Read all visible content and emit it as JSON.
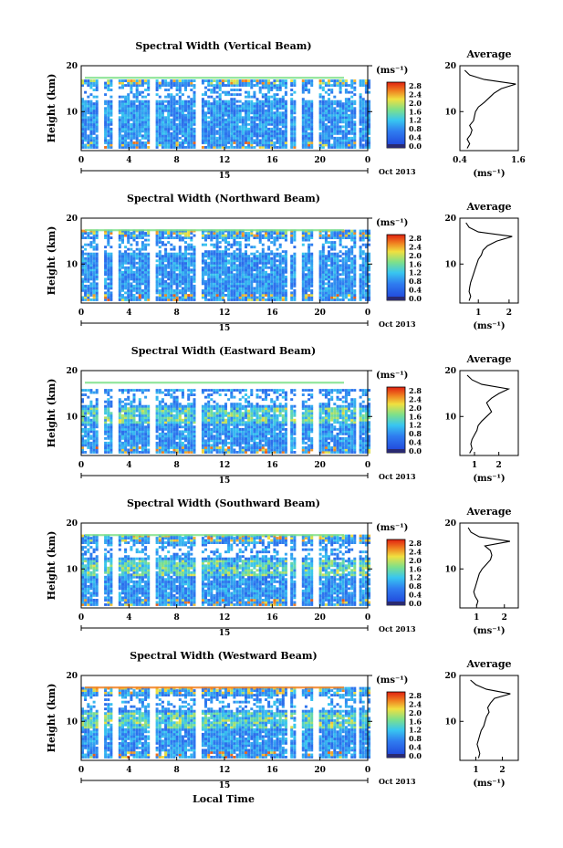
{
  "figure": {
    "xlabel": "Local Time",
    "date_label": "Oct 2013",
    "day_label": "15",
    "colorbar_unit": "(ms⁻¹)",
    "colorbar_ticks": [
      "2.8",
      "2.4",
      "2.0",
      "1.6",
      "1.2",
      "0.8",
      "0.4",
      "0.0"
    ],
    "colors": {
      "low": "#1f3fd8",
      "mid": "#38c6f0",
      "green": "#7ee08a",
      "yellow": "#f0e040",
      "high": "#e02010",
      "bottom": "#2a2a70"
    }
  },
  "chart_data": [
    {
      "type": "heatmap",
      "title": "Spectral Width (Vertical Beam)",
      "ylabel": "Height (km)",
      "x_ticks": [
        "0",
        "4",
        "8",
        "12",
        "16",
        "20",
        "0"
      ],
      "x_range": [
        0,
        24
      ],
      "y_ticks": [
        "20",
        "10"
      ],
      "y_range": [
        1.5,
        20
      ],
      "colorbar_range": [
        0.0,
        3.0
      ],
      "profile": {
        "title": "Average",
        "xlabel": "(ms⁻¹)",
        "x_ticks": [
          "0.4",
          "1.6"
        ],
        "x_range": [
          0.4,
          1.6
        ],
        "heights": [
          2,
          3,
          4,
          5,
          6,
          7,
          8,
          9,
          10,
          11,
          12,
          13,
          14,
          15,
          16,
          17,
          18,
          19
        ],
        "values": [
          0.55,
          0.6,
          0.55,
          0.62,
          0.65,
          0.6,
          0.68,
          0.7,
          0.72,
          0.78,
          0.9,
          1.0,
          1.1,
          1.25,
          1.55,
          0.9,
          0.6,
          0.5
        ]
      }
    },
    {
      "type": "heatmap",
      "title": "Spectral Width (Northward Beam)",
      "ylabel": "Height (km)",
      "x_ticks": [
        "0",
        "4",
        "8",
        "12",
        "16",
        "20",
        "0"
      ],
      "x_range": [
        0,
        24
      ],
      "y_ticks": [
        "20",
        "10"
      ],
      "y_range": [
        1.5,
        20
      ],
      "colorbar_range": [
        0.0,
        3.0
      ],
      "profile": {
        "title": "Average",
        "xlabel": "(ms⁻¹)",
        "x_ticks": [
          "1",
          "2"
        ],
        "x_range": [
          0.4,
          2.3
        ],
        "heights": [
          2,
          3,
          4,
          5,
          6,
          7,
          8,
          9,
          10,
          11,
          12,
          13,
          14,
          15,
          16,
          17,
          18,
          19
        ],
        "values": [
          0.7,
          0.75,
          0.7,
          0.72,
          0.75,
          0.8,
          0.85,
          0.9,
          0.95,
          1.0,
          1.1,
          1.15,
          1.3,
          1.6,
          2.1,
          1.0,
          0.7,
          0.6
        ]
      }
    },
    {
      "type": "heatmap",
      "title": "Spectral Width (Eastward Beam)",
      "ylabel": "Height (km)",
      "x_ticks": [
        "0",
        "4",
        "8",
        "12",
        "16",
        "20",
        "0"
      ],
      "x_range": [
        0,
        24
      ],
      "y_ticks": [
        "20",
        "10"
      ],
      "y_range": [
        1.5,
        20
      ],
      "colorbar_range": [
        0.0,
        3.0
      ],
      "profile": {
        "title": "Average",
        "xlabel": "(ms⁻¹)",
        "x_ticks": [
          "1",
          "2"
        ],
        "x_range": [
          0.4,
          2.8
        ],
        "heights": [
          2,
          3,
          4,
          5,
          6,
          7,
          8,
          9,
          10,
          11,
          12,
          13,
          14,
          15,
          16,
          17,
          18,
          19
        ],
        "values": [
          0.8,
          0.9,
          0.85,
          0.9,
          1.0,
          1.1,
          1.15,
          1.3,
          1.5,
          1.7,
          1.6,
          1.5,
          1.7,
          2.0,
          2.4,
          1.3,
          0.9,
          0.7
        ]
      }
    },
    {
      "type": "heatmap",
      "title": "Spectral Width (Southward Beam)",
      "ylabel": "Height (km)",
      "x_ticks": [
        "0",
        "4",
        "8",
        "12",
        "16",
        "20",
        "0"
      ],
      "x_range": [
        0,
        24
      ],
      "y_ticks": [
        "20",
        "10"
      ],
      "y_range": [
        1.5,
        20
      ],
      "colorbar_range": [
        0.0,
        3.0
      ],
      "profile": {
        "title": "Average",
        "xlabel": "(ms⁻¹)",
        "x_ticks": [
          "1",
          "2"
        ],
        "x_range": [
          0.4,
          2.5
        ],
        "heights": [
          2,
          3,
          4,
          5,
          6,
          7,
          8,
          9,
          10,
          11,
          12,
          13,
          14,
          15,
          16,
          17,
          18,
          19
        ],
        "values": [
          1.0,
          1.05,
          0.95,
          0.9,
          0.95,
          1.0,
          1.05,
          1.1,
          1.2,
          1.35,
          1.5,
          1.55,
          1.5,
          1.3,
          2.2,
          1.1,
          0.8,
          0.7
        ]
      }
    },
    {
      "type": "heatmap",
      "title": "Spectral Width (Westward Beam)",
      "ylabel": "Height (km)",
      "x_ticks": [
        "0",
        "4",
        "8",
        "12",
        "16",
        "20",
        "0"
      ],
      "x_range": [
        0,
        24
      ],
      "y_ticks": [
        "20",
        "10"
      ],
      "y_range": [
        1.5,
        20
      ],
      "colorbar_range": [
        0.0,
        3.0
      ],
      "profile": {
        "title": "Average",
        "xlabel": "(ms⁻¹)",
        "x_ticks": [
          "1",
          "2"
        ],
        "x_range": [
          0.4,
          2.6
        ],
        "heights": [
          2,
          3,
          4,
          5,
          6,
          7,
          8,
          9,
          10,
          11,
          12,
          13,
          14,
          15,
          16,
          17,
          18,
          19
        ],
        "values": [
          1.1,
          1.15,
          1.1,
          1.05,
          1.1,
          1.15,
          1.2,
          1.3,
          1.35,
          1.4,
          1.5,
          1.45,
          1.55,
          1.7,
          2.3,
          1.4,
          1.0,
          0.8
        ]
      }
    }
  ]
}
